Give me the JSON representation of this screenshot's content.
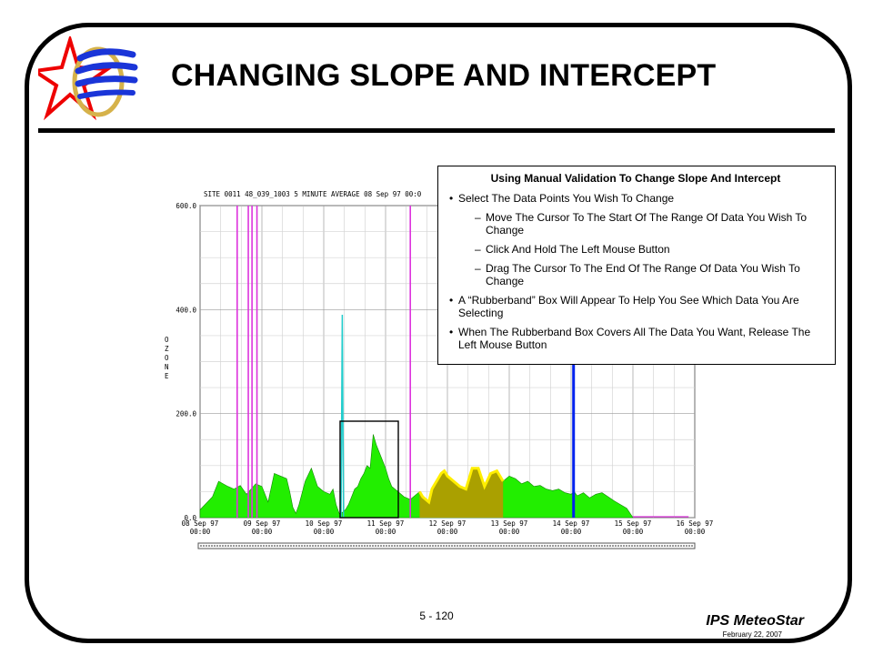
{
  "slide": {
    "title": "CHANGING SLOPE AND INTERCEPT",
    "page_number": "5 - 120",
    "brand": "IPS MeteoStar",
    "date": "February 22, 2007"
  },
  "callout": {
    "heading": "Using Manual Validation To Change Slope And Intercept",
    "items": [
      {
        "level": 1,
        "text": "Select The Data Points You Wish To Change"
      },
      {
        "level": 2,
        "text": "Move The Cursor To The Start Of The Range Of Data You Wish To Change"
      },
      {
        "level": 2,
        "text": "Click And Hold The Left Mouse Button"
      },
      {
        "level": 2,
        "text": "Drag The Cursor To The End Of The Range Of Data You Wish To Change"
      },
      {
        "level": 1,
        "text": "A “Rubberband” Box Will Appear To Help You See Which Data You Are Selecting"
      },
      {
        "level": 1,
        "text": "When The Rubberband Box Covers All The Data You Want, Release The Left Mouse Button"
      }
    ]
  },
  "chart_data": {
    "type": "area",
    "title": "SITE 0011 48_039_1003 5 MINUTE AVERAGE 08 Sep 97 00:0",
    "ylabel": "OZONE",
    "xlabel": "",
    "ylim": [
      0,
      600
    ],
    "xlim_days": [
      0,
      8
    ],
    "y_ticks": [
      "0.0",
      "200.0",
      "400.0",
      "600.0"
    ],
    "x_ticks": [
      {
        "date": "08 Sep 97",
        "time": "00:00"
      },
      {
        "date": "09 Sep 97",
        "time": "00:00"
      },
      {
        "date": "10 Sep 97",
        "time": "00:00"
      },
      {
        "date": "11 Sep 97",
        "time": "00:00"
      },
      {
        "date": "12 Sep 97",
        "time": "00:00"
      },
      {
        "date": "13 Sep 97",
        "time": "00:00"
      },
      {
        "date": "14 Sep 97",
        "time": "00:00"
      },
      {
        "date": "15 Sep 97",
        "time": "00:00"
      },
      {
        "date": "16 Sep 97",
        "time": "00:00"
      }
    ],
    "grid": true,
    "colors": {
      "valid": "#22ee00",
      "selected": "#aaa000",
      "edge": "#ffee00",
      "invalid": "#dd33dd",
      "flag_cyan": "#22cccc",
      "flag_blue": "#0022ee"
    },
    "series": [
      {
        "x": [
          0.0,
          0.2,
          0.3,
          0.45,
          0.55,
          0.65,
          0.75,
          0.9,
          1.0,
          1.1,
          1.2,
          1.3,
          1.4,
          1.45,
          1.5,
          1.55,
          1.6,
          1.7,
          1.8,
          1.9,
          2.0,
          2.1,
          2.15,
          2.2,
          2.25,
          2.3,
          2.35,
          2.4,
          2.5,
          2.55,
          2.6,
          2.65,
          2.7,
          2.75,
          2.8,
          2.85,
          2.9,
          2.95,
          3.0,
          3.05,
          3.1,
          3.2,
          3.3,
          3.4,
          3.5,
          3.55,
          3.6,
          3.65,
          3.7,
          3.75,
          3.8,
          3.85,
          3.9,
          3.95,
          4.0,
          4.1,
          4.2,
          4.3,
          4.4,
          4.5,
          4.6,
          4.7,
          4.8,
          4.9,
          5.0,
          5.1,
          5.2,
          5.3,
          5.4,
          5.5,
          5.6,
          5.7,
          5.8,
          5.9,
          6.0,
          6.05,
          6.1,
          6.2,
          6.3,
          6.4,
          6.5,
          6.6,
          6.7,
          6.8,
          6.9,
          7.0
        ],
        "y": [
          15,
          40,
          70,
          60,
          55,
          62,
          45,
          65,
          60,
          30,
          85,
          80,
          75,
          50,
          20,
          8,
          25,
          70,
          95,
          60,
          50,
          45,
          55,
          25,
          8,
          10,
          15,
          25,
          55,
          60,
          75,
          85,
          100,
          95,
          160,
          140,
          125,
          110,
          95,
          75,
          60,
          50,
          40,
          35,
          45,
          50,
          40,
          35,
          30,
          55,
          65,
          75,
          85,
          90,
          80,
          70,
          60,
          55,
          95,
          95,
          60,
          85,
          90,
          70,
          80,
          75,
          65,
          70,
          60,
          62,
          55,
          52,
          55,
          48,
          45,
          50,
          42,
          48,
          38,
          45,
          48,
          40,
          32,
          25,
          18,
          0
        ]
      },
      {
        "name": "spike",
        "x": [
          2.28,
          2.3,
          2.32
        ],
        "y": [
          0,
          390,
          0
        ]
      }
    ],
    "invalid_markers_days": [
      0.6,
      0.78,
      0.84,
      0.92,
      3.4
    ],
    "blue_spike_days": 6.04,
    "blue_spike_value": 420
  }
}
